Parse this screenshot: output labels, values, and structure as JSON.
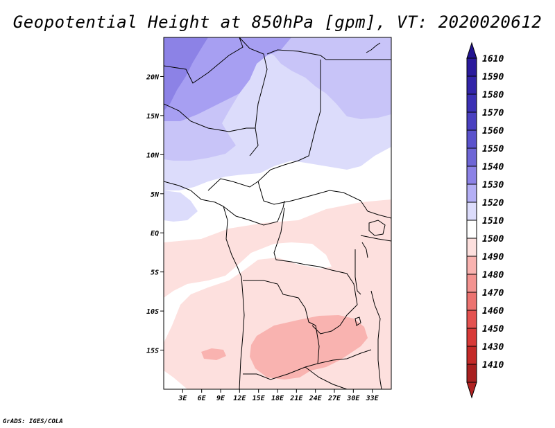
{
  "title": "Geopotential Height at 850hPa [gpm], VT: 2020020612",
  "credit": "GrADS: IGES/COLA",
  "map": {
    "lon_range": [
      0,
      36
    ],
    "lat_range": [
      -20,
      25
    ],
    "x_ticks": [
      {
        "lon": 3,
        "label": "3E"
      },
      {
        "lon": 6,
        "label": "6E"
      },
      {
        "lon": 9,
        "label": "9E"
      },
      {
        "lon": 12,
        "label": "12E"
      },
      {
        "lon": 15,
        "label": "15E"
      },
      {
        "lon": 18,
        "label": "18E"
      },
      {
        "lon": 21,
        "label": "21E"
      },
      {
        "lon": 24,
        "label": "24E"
      },
      {
        "lon": 27,
        "label": "27E"
      },
      {
        "lon": 30,
        "label": "30E"
      },
      {
        "lon": 33,
        "label": "33E"
      }
    ],
    "y_ticks": [
      {
        "lat": 20,
        "label": "20N"
      },
      {
        "lat": 15,
        "label": "15N"
      },
      {
        "lat": 10,
        "label": "10N"
      },
      {
        "lat": 5,
        "label": "5N"
      },
      {
        "lat": 0,
        "label": "EQ"
      },
      {
        "lat": -5,
        "label": "5S"
      },
      {
        "lat": -10,
        "label": "10S"
      },
      {
        "lat": -15,
        "label": "15S"
      }
    ]
  },
  "colorbar": {
    "bins": [
      {
        "label": "1610",
        "color": "#2a1a9c"
      },
      {
        "label": "1590",
        "color": "#3224a8"
      },
      {
        "label": "1580",
        "color": "#3b30b4"
      },
      {
        "label": "1570",
        "color": "#4a40c0"
      },
      {
        "label": "1560",
        "color": "#5a52cc"
      },
      {
        "label": "1550",
        "color": "#6e66d6"
      },
      {
        "label": "1540",
        "color": "#8c82e6"
      },
      {
        "label": "1530",
        "color": "#b4aff5"
      },
      {
        "label": "1520",
        "color": "#dcdcfb"
      },
      {
        "label": "1510",
        "color": "#ffffff"
      },
      {
        "label": "1500",
        "color": "#fde0de"
      },
      {
        "label": "1490",
        "color": "#f9b3b0"
      },
      {
        "label": "1480",
        "color": "#f39390"
      },
      {
        "label": "1470",
        "color": "#ec7370"
      },
      {
        "label": "1460",
        "color": "#e45250"
      },
      {
        "label": "1450",
        "color": "#d83a38"
      },
      {
        "label": "1430",
        "color": "#c42a28"
      },
      {
        "label": "1410",
        "color": "#a82020"
      }
    ],
    "top_arrow_color": "#221490",
    "bottom_arrow_color": "#b02222"
  },
  "field_colors": {
    "h1550": "#8c82e6",
    "h1540": "#a79ff2",
    "h1530": "#c8c4f8",
    "h1520": "#dcdcfb",
    "h1510": "#ffffff",
    "h1500": "#fde0de",
    "h1490": "#f9b3b0"
  }
}
